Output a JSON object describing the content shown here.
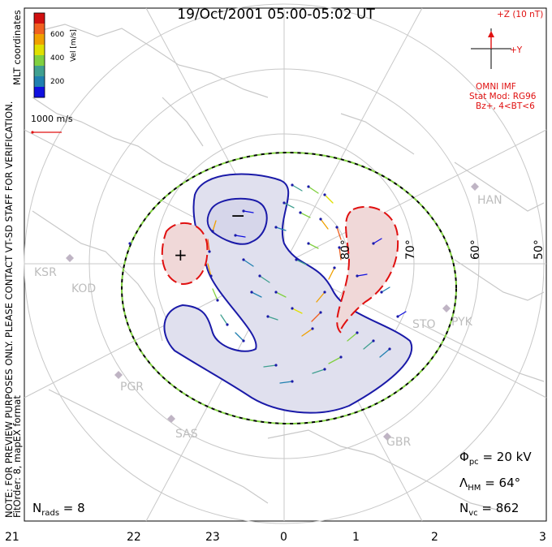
{
  "title": "19/Oct/2001 05:00-05:02 UT",
  "side_notes": {
    "preview": "NOTE: FOR PREVIEW PURPOSES ONLY. PLEASE CONTACT VT-SD STAFF FOR VERIFICATION.",
    "fitorder": "FitOrder: 8, mapEX format",
    "coords": "MLT coordinates"
  },
  "colorbar": {
    "label": "Vel [m/s]",
    "ticks": [
      "600",
      "400",
      "200"
    ],
    "colors": [
      "#d01010",
      "#f06020",
      "#f0a000",
      "#e0e000",
      "#80d040",
      "#40a090",
      "#2080b0",
      "#1010e0"
    ]
  },
  "reference_vector": {
    "label": "1000 m/s",
    "color": "#e01010"
  },
  "imf": {
    "z_label": "+Z (10 nT)",
    "y_label": "+Y",
    "source": "OMNI IMF",
    "model": "Stat Mod: RG96",
    "condition": "Bz+, 4<BT<6"
  },
  "convection": {
    "negative_cell_label": "−",
    "positive_cell_label": "+"
  },
  "latitude_labels": [
    "80°",
    "70°",
    "60°",
    "50°"
  ],
  "sites": [
    "HAN",
    "KSR",
    "KOD",
    "STO",
    "PYK",
    "PGR",
    "SAS",
    "GBR"
  ],
  "stats": {
    "phi_pc": {
      "symbol": "Φ",
      "sub": "pc",
      "value": " = 20 kV"
    },
    "lambda_hm": {
      "symbol": "Λ",
      "sub": "HM",
      "value": " = 64°"
    },
    "n_vc": {
      "symbol": "N",
      "sub": "vc",
      "value": " = 862"
    },
    "n_rads": {
      "symbol": "N",
      "sub": "rads",
      "value": " = 8"
    }
  },
  "hour_labels": [
    "21",
    "22",
    "23",
    "0",
    "1",
    "2",
    "3"
  ]
}
